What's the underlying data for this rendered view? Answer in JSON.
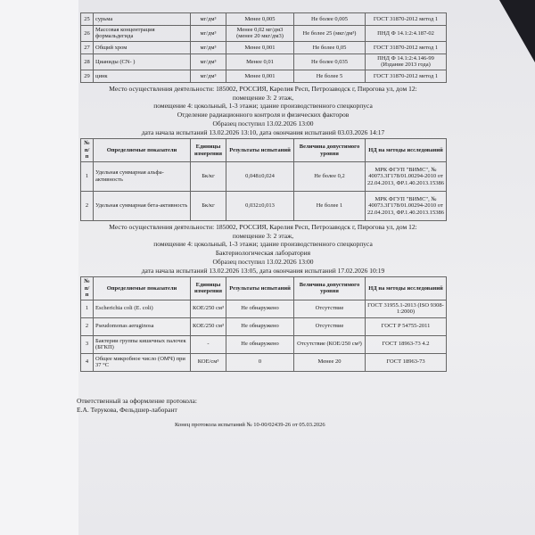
{
  "table_top": {
    "rows": [
      {
        "n": "25",
        "name": "сурьма",
        "unit": "мг/дм³",
        "result": "Менее 0,005",
        "limit": "Не более 0,005",
        "method": "ГОСТ 31870-2012 метод 1"
      },
      {
        "n": "26",
        "name": "Массовая концентрация формальдегида",
        "unit": "мг/дм³",
        "result": "Менее 0,02 мг/дм3 (менее 20 мкг/дм3)",
        "limit": "Не более 25 (мкг/дм³)",
        "method": "ПНД Ф 14.1:2:4.187-02"
      },
      {
        "n": "27",
        "name": "Общий хром",
        "unit": "мг/дм³",
        "result": "Менее 0,001",
        "limit": "Не более 0,05",
        "method": "ГОСТ 31870-2012 метод 1"
      },
      {
        "n": "28",
        "name": "Цианиды (CN- )",
        "unit": "мг/дм³",
        "result": "Менее 0,01",
        "limit": "Не более 0,035",
        "method": "ПНД Ф 14.1:2:4.146-99 (Издание 2013 года)"
      },
      {
        "n": "29",
        "name": "цинк",
        "unit": "мг/дм³",
        "result": "Менее 0,001",
        "limit": "Не более 5",
        "method": "ГОСТ 31870-2012 метод 1"
      }
    ]
  },
  "section_radiation": {
    "lines": [
      "Место осуществления деятельности: 185002, РОССИЯ, Карелия Респ, Петрозаводск г, Пирогова ул, дом 12:",
      "помещение 3: 2 этаж,",
      "помещение 4: цокольный, 1-3 этажи; здание производственного спецкорпуса",
      "Отделение радиационного контроля и физических факторов",
      "Образец поступил 13.02.2026 13:00",
      "дата начала испытаний 13.02.2026 13:10, дата окончания испытаний 03.03.2026 14:17"
    ]
  },
  "headers": [
    "№ п/п",
    "Определяемые показатели",
    "Единицы измерения",
    "Результаты испытаний",
    "Величина допустимого уровня",
    "НД на методы исследований"
  ],
  "table_radiation": {
    "rows": [
      {
        "n": "1",
        "name": "Удельная суммарная альфа-активность",
        "unit": "Бк/кг",
        "result": "0,048±0,024",
        "limit": "Не более 0,2",
        "method": "МРК ФГУП \"ВИМС\", № 40073.3Г178/01.00294-2010 от 22.04.2013, ФР.1.40.2013.15386"
      },
      {
        "n": "2",
        "name": "Удельная суммарная бета-активность",
        "unit": "Бк/кг",
        "result": "0,032±0,013",
        "limit": "Не более 1",
        "method": "МРК ФГУП \"ВИМС\", № 40073.3Г178/01.00294-2010 от 22.04.2013, ФР.1.40.2013.15386"
      }
    ]
  },
  "section_bacteria": {
    "lines": [
      "Место осуществления деятельности: 185002, РОССИЯ, Карелия Респ, Петрозаводск г, Пирогова ул, дом 12:",
      "помещение 3: 2 этаж,",
      "помещение 4: цокольный, 1-3 этажи; здание производственного спецкорпуса",
      "Бактериологическая лаборатория",
      "Образец поступил 13.02.2026 13:00",
      "дата начала испытаний 13.02.2026 13:05, дата окончания испытаний 17.02.2026 10:19"
    ]
  },
  "table_bacteria": {
    "rows": [
      {
        "n": "1",
        "name": "Escherichia coli (E. coli)",
        "unit": "КОЕ/250 см³",
        "result": "Не обнаружено",
        "limit": "Отсутствие",
        "method": "ГОСТ 31955.1-2013 (ISO 9308-1:2000)"
      },
      {
        "n": "2",
        "name": "Pseudomonas aeruginosa",
        "unit": "КОЕ/250 см³",
        "result": "Не обнаружено",
        "limit": "Отсутствие",
        "method": "ГОСТ Р 54755-2011"
      },
      {
        "n": "3",
        "name": "Бактерии группы кишечных палочек (БГКП)",
        "unit": "-",
        "result": "Не обнаружено",
        "limit": "Отсутствие (КОЕ/250 см³)",
        "method": "ГОСТ 18963-73 4.2"
      },
      {
        "n": "4",
        "name": "Общее микробное число (ОМЧ) при 37 °С",
        "unit": "КОЕ/см³",
        "result": "0",
        "limit": "Менее 20",
        "method": "ГОСТ 18963-73"
      }
    ]
  },
  "footer": {
    "responsible": "Ответственный за оформление протокола:",
    "person": "Е.А. Терукова, Фельдшер-лаборант",
    "end": "Конец протокола испытаний № 10-00/02439-26 от 05.03.2026"
  }
}
